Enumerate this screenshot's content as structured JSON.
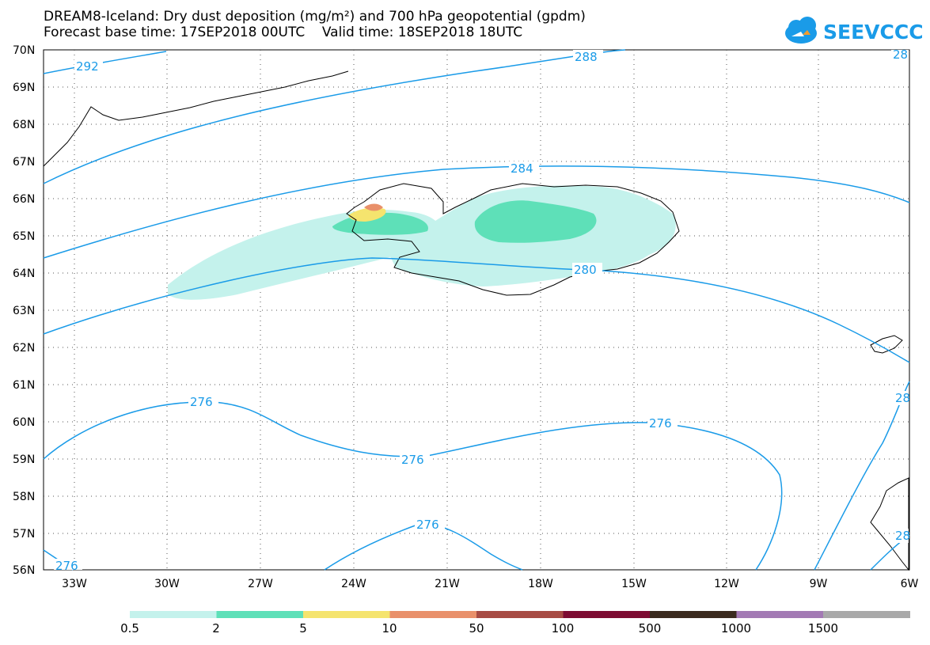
{
  "title": {
    "line1": "DREAM8-Iceland: Dry dust deposition (mg/m²) and 700 hPa geopotential (gpdm)",
    "line2": "Forecast base time: 17SEP2018 00UTC    Valid time: 18SEP2018 18UTC"
  },
  "logo": {
    "text": "SEEVCCC",
    "icon": "cloud-logo-icon",
    "color": "#1a9be8"
  },
  "axes": {
    "lat_labels": [
      "70N",
      "69N",
      "68N",
      "67N",
      "66N",
      "65N",
      "64N",
      "63N",
      "62N",
      "61N",
      "60N",
      "59N",
      "58N",
      "57N",
      "56N"
    ],
    "lon_labels": [
      "33W",
      "30W",
      "27W",
      "24W",
      "21W",
      "18W",
      "15W",
      "12W",
      "9W",
      "6W"
    ]
  },
  "contour_labels": [
    "292",
    "288",
    "28",
    "284",
    "280",
    "276",
    "276",
    "276",
    "276",
    "276",
    "28",
    "28"
  ],
  "colorbar": {
    "labels": [
      "0.5",
      "2",
      "5",
      "10",
      "50",
      "100",
      "500",
      "1000",
      "1500"
    ],
    "colors": [
      "#c4f2ec",
      "#5ee0b8",
      "#f5e46e",
      "#e9906a",
      "#a74b44",
      "#7d0b32",
      "#3a2a1e",
      "#a37ab4",
      "#a9a9a9"
    ]
  },
  "line_color": "#1a9be8"
}
